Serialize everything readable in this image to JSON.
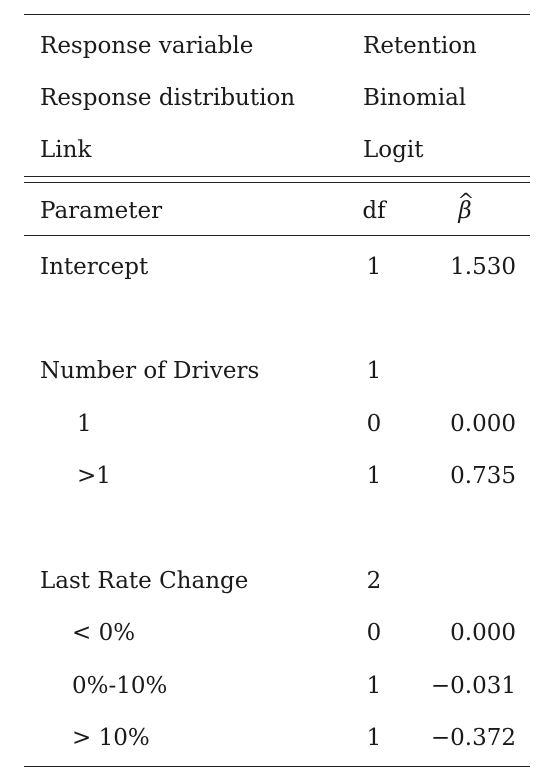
{
  "meta_rows": [
    {
      "label": "Response variable",
      "value": "Retention"
    },
    {
      "label": "Response distribution",
      "value": "Binomial"
    },
    {
      "label": "Link",
      "value": "Logit"
    }
  ],
  "header": {
    "parameter": "Parameter",
    "df": "df",
    "beta_symbol": "β",
    "beta_hat": "^"
  },
  "rows": [
    {
      "parameter": "Intercept",
      "df": "1",
      "beta": "1.530"
    },
    {
      "parameter": "Number of Drivers",
      "df": "1",
      "beta": ""
    },
    {
      "parameter": "1",
      "df": "0",
      "beta": "0.000"
    },
    {
      "parameter": ">1",
      "df": "1",
      "beta": "0.735"
    },
    {
      "parameter": "Last Rate Change",
      "df": "2",
      "beta": ""
    },
    {
      "parameter": "< 0%",
      "df": "0",
      "beta": "0.000"
    },
    {
      "parameter": "0%-10%",
      "df": "1",
      "beta": "−0.031"
    },
    {
      "parameter": "> 10%",
      "df": "1",
      "beta": "−0.372"
    }
  ]
}
